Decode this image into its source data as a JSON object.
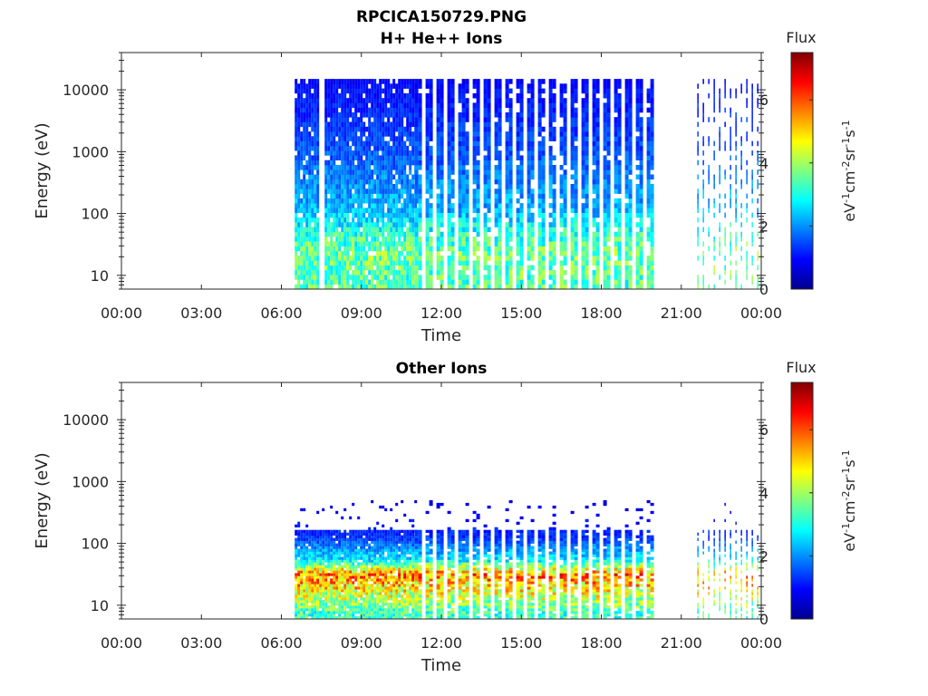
{
  "figure_title": "RPCICA150729.PNG",
  "colormap_stops": [
    "#00008f",
    "#0000ff",
    "#0080ff",
    "#00ffff",
    "#80ff80",
    "#ffff00",
    "#ff8000",
    "#ff0000",
    "#800000"
  ],
  "chart_data": [
    {
      "type": "heatmap",
      "title": "H+ He++ Ions",
      "xlabel": "Time",
      "ylabel": "Energy (eV)",
      "x_tick_labels": [
        "00:00",
        "03:00",
        "06:00",
        "09:00",
        "12:00",
        "15:00",
        "18:00",
        "21:00",
        "00:00"
      ],
      "x_ticks_hours": [
        0,
        3,
        6,
        9,
        12,
        15,
        18,
        21,
        24
      ],
      "xlim_hours": [
        0,
        24
      ],
      "y_scale": "log",
      "y_tick_labels": [
        "10",
        "100",
        "1000",
        "10000"
      ],
      "y_ticks": [
        10,
        100,
        1000,
        10000
      ],
      "ylim": [
        6,
        40000
      ],
      "colorbar": {
        "label": "Flux",
        "units": "eV-1cm-2sr-1s-1",
        "tick_labels": [
          "0",
          "2",
          "4",
          "6"
        ],
        "ticks": [
          0,
          2,
          4,
          6
        ],
        "range": [
          0,
          7.5
        ]
      },
      "data_segments": [
        {
          "start_hour": 6.5,
          "end_hour": 11.0,
          "pattern": "continuous",
          "gap_hour": 7.45
        },
        {
          "start_hour": 11.0,
          "end_hour": 20.1,
          "pattern": "banded"
        },
        {
          "start_hour": 21.6,
          "end_hour": 24.0,
          "pattern": "sparse"
        }
      ],
      "energy_flux_profile": [
        {
          "energy": 7,
          "flux": 3.4
        },
        {
          "energy": 20,
          "flux": 3.6
        },
        {
          "energy": 40,
          "flux": 3.2
        },
        {
          "energy": 100,
          "flux": 2.3
        },
        {
          "energy": 1000,
          "flux": 1.5
        },
        {
          "energy": 15000,
          "flux": 0.9
        }
      ],
      "max_energy": 15000
    },
    {
      "type": "heatmap",
      "title": "Other Ions",
      "xlabel": "Time",
      "ylabel": "Energy (eV)",
      "x_tick_labels": [
        "00:00",
        "03:00",
        "06:00",
        "09:00",
        "12:00",
        "15:00",
        "18:00",
        "21:00",
        "00:00"
      ],
      "x_ticks_hours": [
        0,
        3,
        6,
        9,
        12,
        15,
        18,
        21,
        24
      ],
      "xlim_hours": [
        0,
        24
      ],
      "y_scale": "log",
      "y_tick_labels": [
        "10",
        "100",
        "1000",
        "10000"
      ],
      "y_ticks": [
        10,
        100,
        1000,
        10000
      ],
      "ylim": [
        6,
        40000
      ],
      "colorbar": {
        "label": "Flux",
        "units": "eV-1cm-2sr-1s-1",
        "tick_labels": [
          "0",
          "2",
          "4",
          "6"
        ],
        "ticks": [
          0,
          2,
          4,
          6
        ],
        "range": [
          0,
          7.5
        ]
      },
      "data_segments": [
        {
          "start_hour": 6.5,
          "end_hour": 11.0,
          "pattern": "continuous"
        },
        {
          "start_hour": 11.0,
          "end_hour": 20.1,
          "pattern": "banded"
        },
        {
          "start_hour": 21.6,
          "end_hour": 24.0,
          "pattern": "sparse"
        }
      ],
      "energy_flux_profile": [
        {
          "energy": 7,
          "flux": 3.2
        },
        {
          "energy": 15,
          "flux": 4.5
        },
        {
          "energy": 30,
          "flux": 5.6
        },
        {
          "energy": 50,
          "flux": 2.8
        },
        {
          "energy": 120,
          "flux": 1.3
        },
        {
          "energy": 500,
          "flux": 0.6
        }
      ],
      "max_energy": 500
    }
  ]
}
